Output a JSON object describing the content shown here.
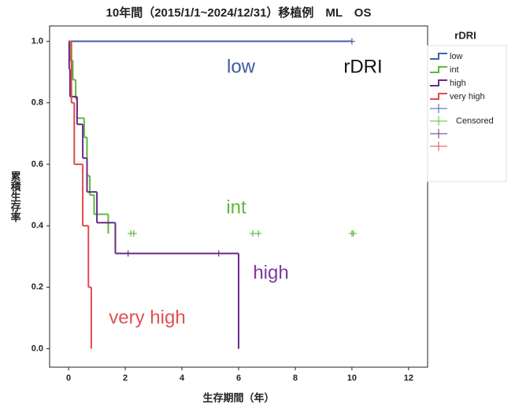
{
  "chart_data": {
    "type": "survival",
    "title": "10年間（2015/1/1~2024/12/31）移植例　ML　OS",
    "x_label": "生存期間（年）",
    "y_label": "累積生存率",
    "legend_title": "rDRI",
    "censored_label": "Censored",
    "xlim": [
      -0.67,
      12.67
    ],
    "ylim": [
      -0.06,
      1.05
    ],
    "xticks": [
      0,
      2,
      4,
      6,
      8,
      10,
      12
    ],
    "yticks": [
      {
        "value": 0,
        "label": "0.0"
      },
      {
        "value": 0.2,
        "label": "0.2"
      },
      {
        "value": 0.4,
        "label": "0.4"
      },
      {
        "value": 0.6,
        "label": "0.6"
      },
      {
        "value": 0.8,
        "label": "0.8"
      },
      {
        "value": 1,
        "label": "1.0"
      }
    ],
    "series": [
      {
        "name": "low",
        "color": "#3f5fa8",
        "x": [
          0,
          10
        ],
        "values": [
          1,
          1
        ],
        "censored_x": [
          10
        ],
        "censored_values": [
          1
        ]
      },
      {
        "name": "int",
        "color": "#5cb83a",
        "x": [
          0,
          0.05,
          0.15,
          0.25,
          0.3,
          0.55,
          0.65,
          0.75,
          0.9,
          1.4
        ],
        "values": [
          1,
          0.9375,
          0.875,
          0.8125,
          0.75,
          0.6875,
          0.5625,
          0.5,
          0.4375,
          0.375
        ],
        "censored_x": [
          2.2,
          2.3,
          6.5,
          6.7,
          10,
          10.05
        ],
        "censored_values": [
          0.375,
          0.375,
          0.375,
          0.375,
          0.375,
          0.375
        ]
      },
      {
        "name": "high",
        "color": "#6a2a8a",
        "x": [
          0,
          0.02,
          0.05,
          0.3,
          0.5,
          0.65,
          1.0,
          1.65,
          6.0
        ],
        "values": [
          1,
          0.91,
          0.82,
          0.73,
          0.62,
          0.51,
          0.41,
          0.31,
          0
        ],
        "censored_x": [
          2.1,
          5.3
        ],
        "censored_values": [
          0.31,
          0.31
        ]
      },
      {
        "name": "very high",
        "color": "#e04a4a",
        "x": [
          0,
          0.1,
          0.2,
          0.5,
          0.7,
          0.8
        ],
        "values": [
          1,
          0.8,
          0.6,
          0.4,
          0.2,
          0
        ],
        "censored_x": [],
        "censored_values": []
      }
    ],
    "annotations": [
      {
        "text": "low",
        "color": "#3d5a9e"
      },
      {
        "text": "rDRI",
        "color": "#111111"
      },
      {
        "text": "int",
        "color": "#5cb83a"
      },
      {
        "text": "high",
        "color": "#7a3a9a"
      },
      {
        "text": "very high",
        "color": "#e05050"
      }
    ]
  }
}
